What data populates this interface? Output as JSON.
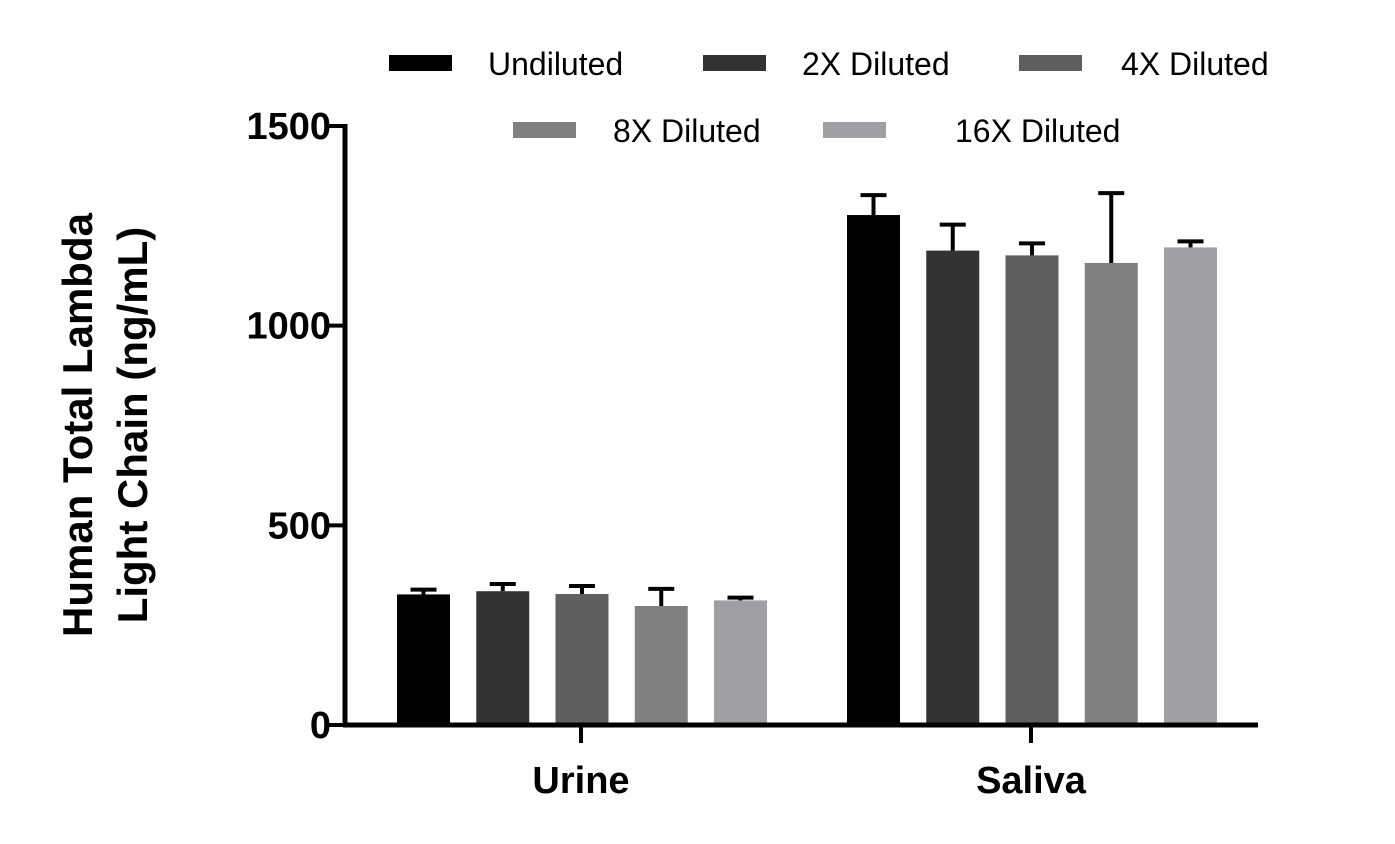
{
  "chart_data": {
    "type": "bar",
    "title": "",
    "xlabel": "",
    "ylabel_lines": [
      "Human Total Lambda",
      "Light Chain (ng/mL)"
    ],
    "categories": [
      "Urine",
      "Saliva"
    ],
    "ylim": [
      0,
      1500
    ],
    "yticks": [
      0,
      500,
      1000,
      1500
    ],
    "grid": false,
    "legend_position": "top",
    "series": [
      {
        "name": "Undiluted",
        "color": "#000000",
        "values": [
          327,
          1277
        ],
        "errors": [
          12,
          50
        ]
      },
      {
        "name": "2X Diluted",
        "color": "#333333",
        "values": [
          335,
          1188
        ],
        "errors": [
          18,
          65
        ]
      },
      {
        "name": "4X Diluted",
        "color": "#5f5f5f",
        "values": [
          328,
          1176
        ],
        "errors": [
          20,
          30
        ]
      },
      {
        "name": "8X Diluted",
        "color": "#808080",
        "values": [
          298,
          1157
        ],
        "errors": [
          43,
          175
        ]
      },
      {
        "name": "16X Diluted",
        "color": "#a0a0a4",
        "values": [
          312,
          1196
        ],
        "errors": [
          7,
          15
        ]
      }
    ]
  }
}
